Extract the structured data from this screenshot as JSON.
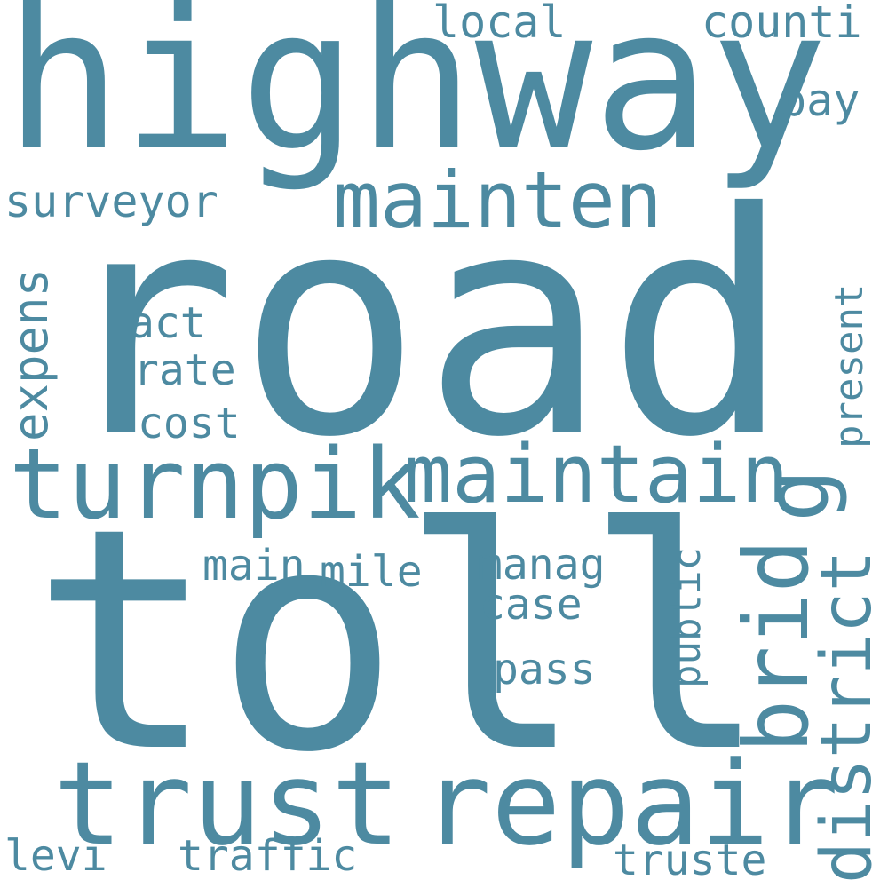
{
  "word_color": "#4d8aa1",
  "background": "#ffffff",
  "words": [
    {
      "text": "road"
    },
    {
      "text": "toll"
    },
    {
      "text": "highway"
    },
    {
      "text": "trust"
    },
    {
      "text": "repair"
    },
    {
      "text": "turnpik"
    },
    {
      "text": "maintain"
    },
    {
      "text": "mainten"
    },
    {
      "text": "brid"
    },
    {
      "text": "g"
    },
    {
      "text": "district"
    },
    {
      "text": "local"
    },
    {
      "text": "counti"
    },
    {
      "text": "pay"
    },
    {
      "text": "surveyor"
    },
    {
      "text": "act"
    },
    {
      "text": "rate"
    },
    {
      "text": "cost"
    },
    {
      "text": "expens"
    },
    {
      "text": "present"
    },
    {
      "text": "main"
    },
    {
      "text": "mile"
    },
    {
      "text": "manag"
    },
    {
      "text": "case"
    },
    {
      "text": "public"
    },
    {
      "text": "pass"
    },
    {
      "text": "levi"
    },
    {
      "text": "traffic"
    },
    {
      "text": "truste"
    }
  ]
}
